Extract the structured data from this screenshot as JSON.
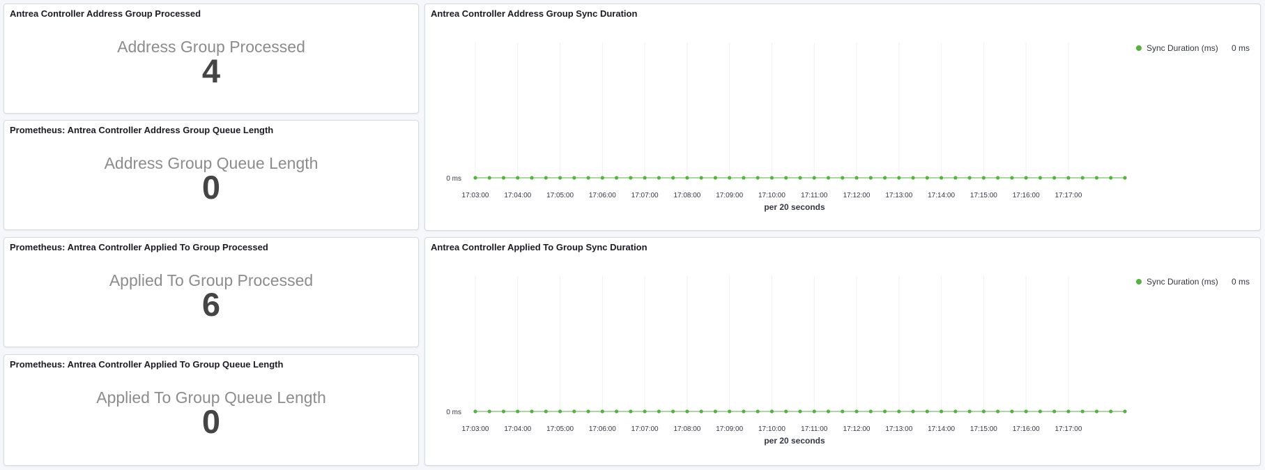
{
  "panels": {
    "address_group_processed": {
      "title": "Antrea Controller Address Group Processed",
      "label": "Address Group Processed",
      "value": "4"
    },
    "address_group_queue": {
      "title": "Prometheus: Antrea Controller Address Group Queue Length",
      "label": "Address Group Queue Length",
      "value": "0"
    },
    "applied_to_group_processed": {
      "title": "Prometheus: Antrea Controller Applied To Group Processed",
      "label": "Applied To Group Processed",
      "value": "6"
    },
    "applied_to_group_queue": {
      "title": "Prometheus: Antrea Controller Applied To Group Queue Length",
      "label": "Applied To Group Queue Length",
      "value": "0"
    },
    "address_group_sync": {
      "title": "Antrea Controller Address Group Sync Duration"
    },
    "applied_to_group_sync": {
      "title": "Antrea Controller Applied To Group Sync Duration"
    }
  },
  "colors": {
    "series": "#54b33f",
    "grid": "#eef0f3"
  },
  "chart_data": [
    {
      "type": "line",
      "title": "Antrea Controller Address Group Sync Duration",
      "xlabel": "per 20 seconds",
      "ylabel": "",
      "x_ticks": [
        "17:03:00",
        "17:04:00",
        "17:05:00",
        "17:06:00",
        "17:07:00",
        "17:08:00",
        "17:09:00",
        "17:10:00",
        "17:11:00",
        "17:12:00",
        "17:13:00",
        "17:14:00",
        "17:15:00",
        "17:16:00",
        "17:17:00"
      ],
      "y_ticks": [
        "0 ms"
      ],
      "x_start": "17:03:00",
      "x_end": "17:17:40",
      "x_step_seconds": 20,
      "series": [
        {
          "name": "Sync Duration (ms)",
          "legend_value": "0 ms",
          "values": [
            0,
            0,
            0,
            0,
            0,
            0,
            0,
            0,
            0,
            0,
            0,
            0,
            0,
            0,
            0,
            0,
            0,
            0,
            0,
            0,
            0,
            0,
            0,
            0,
            0,
            0,
            0,
            0,
            0,
            0,
            0,
            0,
            0,
            0,
            0,
            0,
            0,
            0,
            0,
            0,
            0,
            0,
            0,
            0,
            0,
            0,
            0
          ]
        }
      ],
      "legend": "top-right",
      "grid": true
    },
    {
      "type": "line",
      "title": "Antrea Controller Applied To Group Sync Duration",
      "xlabel": "per 20 seconds",
      "ylabel": "",
      "x_ticks": [
        "17:03:00",
        "17:04:00",
        "17:05:00",
        "17:06:00",
        "17:07:00",
        "17:08:00",
        "17:09:00",
        "17:10:00",
        "17:11:00",
        "17:12:00",
        "17:13:00",
        "17:14:00",
        "17:15:00",
        "17:16:00",
        "17:17:00"
      ],
      "y_ticks": [
        "0 ms"
      ],
      "x_start": "17:03:00",
      "x_end": "17:17:40",
      "x_step_seconds": 20,
      "series": [
        {
          "name": "Sync Duration (ms)",
          "legend_value": "0 ms",
          "values": [
            0,
            0,
            0,
            0,
            0,
            0,
            0,
            0,
            0,
            0,
            0,
            0,
            0,
            0,
            0,
            0,
            0,
            0,
            0,
            0,
            0,
            0,
            0,
            0,
            0,
            0,
            0,
            0,
            0,
            0,
            0,
            0,
            0,
            0,
            0,
            0,
            0,
            0,
            0,
            0,
            0,
            0,
            0,
            0,
            0,
            0,
            0
          ]
        }
      ],
      "legend": "top-right",
      "grid": true
    }
  ]
}
